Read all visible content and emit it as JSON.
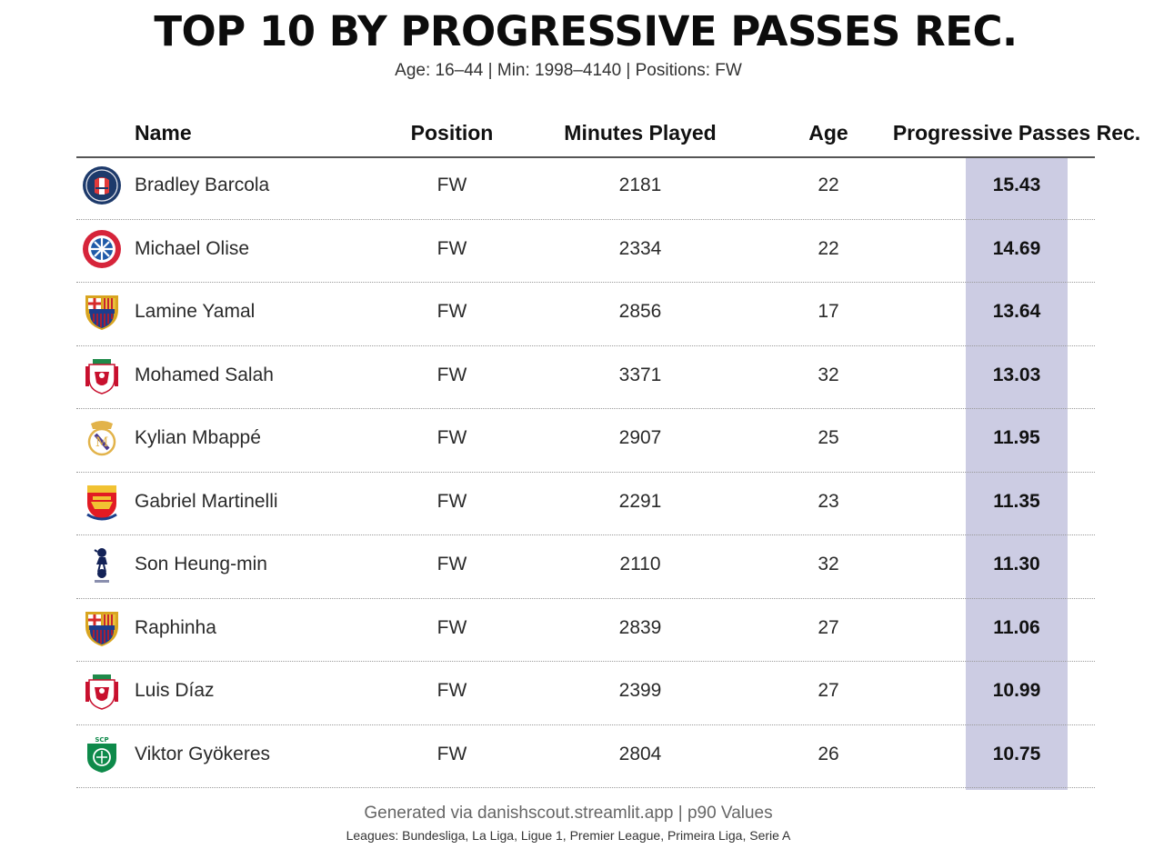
{
  "title": "TOP 10 BY PROGRESSIVE PASSES REC.",
  "subtitle": "Age: 16–44 | Min: 1998–4140 | Positions: FW",
  "footer": {
    "line1": "Generated via danishscout.streamlit.app | p90 Values",
    "line2": "Leagues: Bundesliga, La Liga, Ligue 1, Premier League, Primeira Liga, Serie A"
  },
  "colors": {
    "highlight": "#cccce3",
    "text": "#111111",
    "separator": "#9a9a9a"
  },
  "chart_data": {
    "type": "table",
    "columns": [
      "Name",
      "Position",
      "Minutes Played",
      "Age",
      "Progressive Passes Rec."
    ],
    "rows": [
      {
        "name": "Bradley Barcola",
        "position": "FW",
        "minutes": "2181",
        "age": "22",
        "value": "15.43",
        "club_icon": "psg-crest-icon"
      },
      {
        "name": "Michael Olise",
        "position": "FW",
        "minutes": "2334",
        "age": "22",
        "value": "14.69",
        "club_icon": "bayern-crest-icon"
      },
      {
        "name": "Lamine Yamal",
        "position": "FW",
        "minutes": "2856",
        "age": "17",
        "value": "13.64",
        "club_icon": "barcelona-crest-icon"
      },
      {
        "name": "Mohamed Salah",
        "position": "FW",
        "minutes": "3371",
        "age": "32",
        "value": "13.03",
        "club_icon": "liverpool-crest-icon"
      },
      {
        "name": "Kylian Mbappé",
        "position": "FW",
        "minutes": "2907",
        "age": "25",
        "value": "11.95",
        "club_icon": "real-madrid-crest-icon"
      },
      {
        "name": "Gabriel Martinelli",
        "position": "FW",
        "minutes": "2291",
        "age": "23",
        "value": "11.35",
        "club_icon": "arsenal-crest-icon"
      },
      {
        "name": "Son Heung-min",
        "position": "FW",
        "minutes": "2110",
        "age": "32",
        "value": "11.30",
        "club_icon": "tottenham-crest-icon"
      },
      {
        "name": "Raphinha",
        "position": "FW",
        "minutes": "2839",
        "age": "27",
        "value": "11.06",
        "club_icon": "barcelona-crest-icon"
      },
      {
        "name": "Luis Díaz",
        "position": "FW",
        "minutes": "2399",
        "age": "27",
        "value": "10.99",
        "club_icon": "liverpool-crest-icon"
      },
      {
        "name": "Viktor Gyökeres",
        "position": "FW",
        "minutes": "2804",
        "age": "26",
        "value": "10.75",
        "club_icon": "sporting-crest-icon"
      }
    ]
  }
}
